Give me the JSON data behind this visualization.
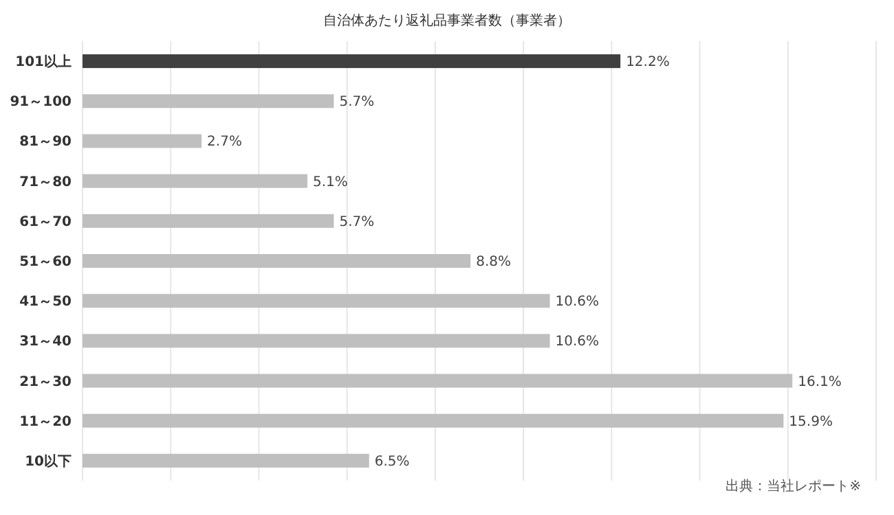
{
  "chart_data": {
    "type": "bar",
    "orientation": "horizontal",
    "title": "自治体あたり返礼品事業者数（事業者）",
    "categories": [
      "101以上",
      "91～100",
      "81～90",
      "71～80",
      "61～70",
      "51～60",
      "41～50",
      "31～40",
      "21～30",
      "11～20",
      "10以下"
    ],
    "values": [
      12.2,
      5.7,
      2.7,
      5.1,
      5.7,
      8.8,
      10.6,
      10.6,
      16.1,
      15.9,
      6.5
    ],
    "value_labels": [
      "12.2%",
      "5.7%",
      "2.7%",
      "5.1%",
      "5.7%",
      "8.8%",
      "10.6%",
      "10.6%",
      "16.1%",
      "15.9%",
      "6.5%"
    ],
    "colors": [
      "#404040",
      "#bfbfbf",
      "#bfbfbf",
      "#bfbfbf",
      "#bfbfbf",
      "#bfbfbf",
      "#bfbfbf",
      "#bfbfbf",
      "#bfbfbf",
      "#bfbfbf",
      "#bfbfbf"
    ],
    "xlim": [
      0,
      18
    ],
    "xticks": [
      {
        "value": 0,
        "label": null
      },
      {
        "value": 2,
        "label": null
      },
      {
        "value": 4,
        "label": null
      },
      {
        "value": 6,
        "label": null
      },
      {
        "value": 8,
        "label": null
      },
      {
        "value": 10,
        "label": null
      },
      {
        "value": 12,
        "label": null
      },
      {
        "value": 14,
        "label": null
      },
      {
        "value": 16,
        "label": null
      },
      {
        "value": 18,
        "label": null
      }
    ],
    "grid": "x",
    "tick_labels": "y",
    "annotations": [
      "出典：当社レポート※"
    ]
  }
}
